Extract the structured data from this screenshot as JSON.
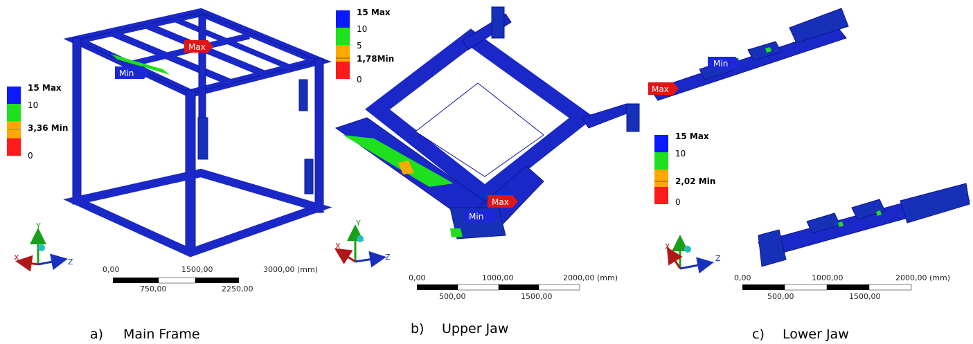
{
  "colors": {
    "structure": "#1a28c8",
    "structure_dark": "#0e1890",
    "legend_blue": "#0a1aff",
    "legend_green": "#1ee01e",
    "legend_orange": "#ffa800",
    "legend_red": "#ff1a1a",
    "max_tag": "#e01616",
    "min_tag": "#1a28d8",
    "axis_x": "#b01818",
    "axis_y": "#18a018",
    "axis_z": "#1830c0",
    "axis_origin": "#20c0c0"
  },
  "panels": {
    "a": {
      "caption_letter": "a)",
      "caption_text": "Main Frame",
      "legend": [
        "15 Max",
        "10",
        "3,36 Min",
        "0"
      ],
      "max_tag": "Max",
      "min_tag": "Min",
      "scale_top": [
        "0,00",
        "1500,00",
        "3000,00 (mm)"
      ],
      "scale_bottom": [
        "750,00",
        "2250,00"
      ],
      "axes": [
        "X",
        "Y",
        "Z"
      ]
    },
    "b": {
      "caption_letter": "b)",
      "caption_text": "Upper Jaw",
      "legend": [
        "15 Max",
        "10",
        "5",
        "1,78Min",
        "0"
      ],
      "max_tag": "Max",
      "min_tag": "Min",
      "scale_top": [
        "0,00",
        "1000,00",
        "2000,00 (mm)"
      ],
      "scale_bottom": [
        "500,00",
        "1500,00"
      ],
      "axes": [
        "X",
        "Y",
        "Z"
      ]
    },
    "c": {
      "caption_letter": "c)",
      "caption_text": "Lower Jaw",
      "legend": [
        "15 Max",
        "10",
        "2,02 Min",
        "0"
      ],
      "max_tag": "Max",
      "min_tag": "Min",
      "scale_top": [
        "0,00",
        "1000,00",
        "2000,00 (mm)"
      ],
      "scale_bottom": [
        "500,00",
        "1500,00"
      ],
      "axes": [
        "X",
        "Y",
        "Z"
      ]
    }
  }
}
